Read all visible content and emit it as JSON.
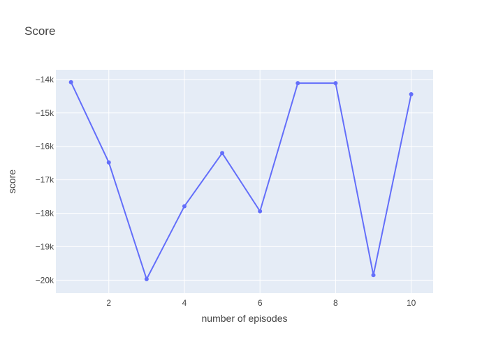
{
  "chart_data": {
    "type": "line",
    "title": "Score",
    "xlabel": "number of episodes",
    "ylabel": "score",
    "x": [
      1,
      2,
      3,
      4,
      5,
      6,
      7,
      8,
      9,
      10
    ],
    "series": [
      {
        "values": [
          -14080,
          -16480,
          -19970,
          -17790,
          -16200,
          -17940,
          -14110,
          -14110,
          -19850,
          -14440
        ]
      }
    ],
    "xlim": [
      0.6,
      10.58
    ],
    "ylim": [
      -20390,
      -13710
    ],
    "xticks": [
      2,
      4,
      6,
      8,
      10
    ],
    "xtick_labels": [
      "2",
      "4",
      "6",
      "8",
      "10"
    ],
    "yticks": [
      -14000,
      -15000,
      -16000,
      -17000,
      -18000,
      -19000,
      -20000
    ],
    "ytick_labels": [
      "−14k",
      "−15k",
      "−16k",
      "−17k",
      "−18k",
      "−19k",
      "−20k"
    ],
    "grid": true,
    "colors": {
      "plot_background": "#e5ecf6",
      "grid": "#ffffff",
      "line": "#636efa"
    }
  }
}
